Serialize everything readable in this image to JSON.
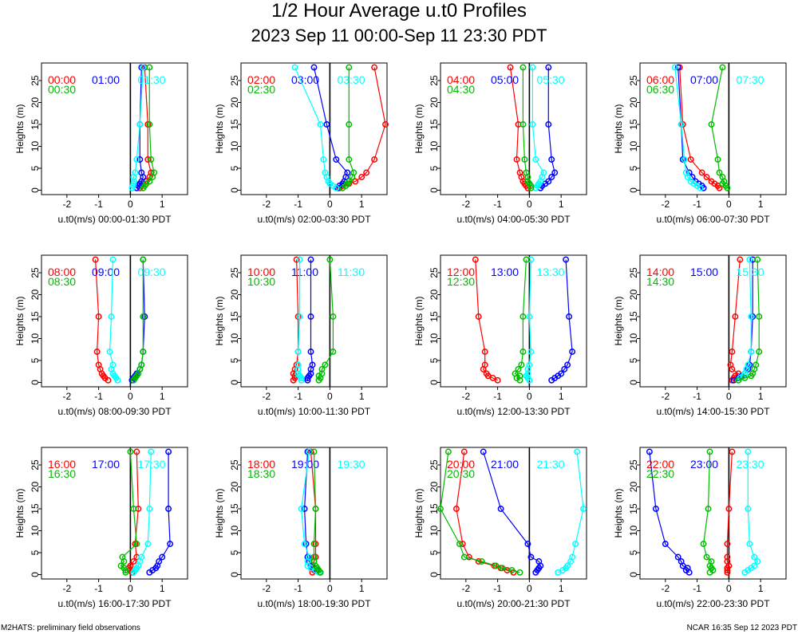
{
  "title": "1/2 Hour Average u.t0 Profiles",
  "subtitle": "2023 Sep 11 00:00-Sep 11 23:30 PDT",
  "footer_left": "M2HATS: preliminary field observations",
  "footer_right": "NCAR 16:35 Sep 12 2023 PDT",
  "colors": {
    "red": "#ff0000",
    "blue": "#0000ff",
    "cyan": "#00ffff",
    "green": "#00bb00"
  },
  "chart_data": {
    "type": "line",
    "ylabel": "Heights (m)",
    "xlim": [
      -2.8,
      1.8
    ],
    "ylim": [
      -1,
      29
    ],
    "xticks": [
      -2,
      -1,
      0,
      1
    ],
    "yticks": [
      0,
      5,
      10,
      15,
      20,
      25
    ],
    "heights": [
      0.5,
      1,
      1.5,
      2,
      3,
      4,
      7,
      15,
      28
    ],
    "panels": [
      {
        "xlabel": "u.t0(m/s) 00:00-01:30 PDT",
        "series": [
          {
            "name": "00:00",
            "color": "red",
            "values": [
              0.3,
              0.35,
              0.4,
              0.5,
              0.6,
              0.65,
              0.55,
              0.55,
              0.45
            ]
          },
          {
            "name": "01:00",
            "color": "blue",
            "values": [
              0.2,
              0.25,
              0.3,
              0.35,
              0.4,
              0.35,
              0.3,
              0.3,
              0.35
            ]
          },
          {
            "name": "01:30",
            "color": "cyan",
            "values": [
              0.05,
              0.08,
              0.1,
              0.12,
              0.1,
              0.15,
              0.2,
              0.3,
              0.4
            ]
          },
          {
            "name": "00:30",
            "color": "green",
            "values": [
              0.4,
              0.45,
              0.5,
              0.6,
              0.7,
              0.75,
              0.65,
              0.6,
              0.6
            ]
          }
        ]
      },
      {
        "xlabel": "u.t0(m/s) 02:00-03:30 PDT",
        "series": [
          {
            "name": "02:00",
            "color": "red",
            "values": [
              0.3,
              0.4,
              0.6,
              0.8,
              1.0,
              1.15,
              1.4,
              1.75,
              1.4
            ]
          },
          {
            "name": "03:00",
            "color": "blue",
            "values": [
              0.25,
              0.3,
              0.4,
              0.45,
              0.5,
              0.55,
              0.2,
              -0.1,
              -0.5
            ]
          },
          {
            "name": "03:30",
            "color": "cyan",
            "values": [
              0.2,
              0.1,
              0.0,
              -0.05,
              -0.1,
              -0.15,
              -0.2,
              -0.3,
              -1.1
            ]
          },
          {
            "name": "02:30",
            "color": "green",
            "values": [
              0.4,
              0.5,
              0.55,
              0.6,
              0.7,
              0.75,
              0.6,
              0.6,
              0.6
            ]
          }
        ]
      },
      {
        "xlabel": "u.t0(m/s) 04:00-05:30 PDT",
        "series": [
          {
            "name": "04:00",
            "color": "red",
            "values": [
              -0.05,
              -0.1,
              -0.15,
              -0.2,
              -0.25,
              -0.3,
              -0.4,
              -0.35,
              -0.6
            ]
          },
          {
            "name": "05:00",
            "color": "blue",
            "values": [
              0.35,
              0.4,
              0.5,
              0.6,
              0.7,
              0.8,
              0.7,
              0.6,
              0.6
            ]
          },
          {
            "name": "05:30",
            "color": "cyan",
            "values": [
              0.2,
              0.25,
              0.3,
              0.35,
              0.4,
              0.45,
              0.2,
              0.1,
              0.1
            ]
          },
          {
            "name": "04:30",
            "color": "green",
            "values": [
              0.05,
              0.05,
              0.0,
              -0.05,
              -0.05,
              -0.1,
              -0.15,
              -0.2,
              -0.2
            ]
          }
        ]
      },
      {
        "xlabel": "u.t0(m/s) 06:00-07:30 PDT",
        "series": [
          {
            "name": "06:00",
            "color": "red",
            "values": [
              -0.3,
              -0.35,
              -0.45,
              -0.55,
              -0.7,
              -0.85,
              -1.2,
              -1.45,
              -1.55
            ]
          },
          {
            "name": "07:00",
            "color": "blue",
            "values": [
              -0.8,
              -0.85,
              -0.95,
              -1.05,
              -1.15,
              -1.25,
              -1.45,
              -1.5,
              -1.6
            ]
          },
          {
            "name": "07:30",
            "color": "cyan",
            "values": [
              -0.9,
              -1.0,
              -1.1,
              -1.2,
              -1.3,
              -1.35,
              -1.4,
              -1.5,
              -1.7
            ]
          },
          {
            "name": "06:30",
            "color": "green",
            "values": [
              -0.05,
              -0.1,
              -0.2,
              -0.15,
              -0.2,
              -0.3,
              -0.35,
              -0.55,
              -0.2
            ]
          }
        ]
      },
      {
        "xlabel": "u.t0(m/s) 08:00-09:30 PDT",
        "series": [
          {
            "name": "08:00",
            "color": "red",
            "values": [
              -0.7,
              -0.8,
              -0.85,
              -0.9,
              -0.95,
              -1.0,
              -1.05,
              -1.0,
              -1.1
            ]
          },
          {
            "name": "09:00",
            "color": "blue",
            "values": [
              0.05,
              0.1,
              0.15,
              0.2,
              0.3,
              0.35,
              0.4,
              0.45,
              0.4
            ]
          },
          {
            "name": "09:30",
            "color": "cyan",
            "values": [
              -0.4,
              -0.45,
              -0.5,
              -0.55,
              -0.6,
              -0.55,
              -0.65,
              -0.6,
              -0.55
            ]
          },
          {
            "name": "08:30",
            "color": "green",
            "values": [
              0.1,
              0.15,
              0.2,
              0.25,
              0.3,
              0.35,
              0.4,
              0.4,
              0.4
            ]
          }
        ]
      },
      {
        "xlabel": "u.t0(m/s) 10:00-11:30 PDT",
        "series": [
          {
            "name": "10:00",
            "color": "red",
            "values": [
              -1.15,
              -1.1,
              -1.1,
              -1.15,
              -1.1,
              -1.05,
              -1.0,
              -1.0,
              -1.05
            ]
          },
          {
            "name": "11:00",
            "color": "blue",
            "values": [
              -0.7,
              -0.7,
              -0.65,
              -0.6,
              -0.6,
              -0.55,
              -0.6,
              -0.6,
              -0.6
            ]
          },
          {
            "name": "11:30",
            "color": "cyan",
            "values": [
              -0.9,
              -0.9,
              -0.95,
              -1.0,
              -1.0,
              -1.0,
              -1.0,
              -0.95,
              -0.95
            ]
          },
          {
            "name": "10:30",
            "color": "green",
            "values": [
              -0.35,
              -0.3,
              -0.35,
              -0.25,
              -0.25,
              -0.15,
              0.1,
              0.1,
              0.0
            ]
          }
        ]
      },
      {
        "xlabel": "u.t0(m/s) 12:00-13:30 PDT",
        "series": [
          {
            "name": "12:00",
            "color": "red",
            "values": [
              -1.0,
              -1.15,
              -1.3,
              -1.35,
              -1.45,
              -1.4,
              -1.4,
              -1.6,
              -1.7
            ]
          },
          {
            "name": "13:00",
            "color": "blue",
            "values": [
              0.7,
              0.8,
              0.9,
              1.0,
              1.1,
              1.2,
              1.35,
              1.25,
              1.15
            ]
          },
          {
            "name": "13:30",
            "color": "cyan",
            "values": [
              0.0,
              -0.05,
              -0.1,
              -0.05,
              -0.05,
              0.0,
              0.05,
              0.0,
              0.05
            ]
          },
          {
            "name": "12:30",
            "color": "green",
            "values": [
              -0.3,
              -0.4,
              -0.3,
              -0.45,
              -0.35,
              -0.25,
              -0.2,
              -0.2,
              -0.1
            ]
          }
        ]
      },
      {
        "xlabel": "u.t0(m/s) 14:00-15:30 PDT",
        "series": [
          {
            "name": "14:00",
            "color": "red",
            "values": [
              0.1,
              0.15,
              0.2,
              0.3,
              0.1,
              0.05,
              0.1,
              0.2,
              0.35
            ]
          },
          {
            "name": "15:00",
            "color": "blue",
            "values": [
              0.15,
              0.3,
              0.4,
              0.5,
              0.6,
              0.65,
              0.7,
              0.75,
              0.75
            ]
          },
          {
            "name": "15:30",
            "color": "cyan",
            "values": [
              0.3,
              0.35,
              0.45,
              0.5,
              0.55,
              0.6,
              0.7,
              0.7,
              0.65
            ]
          },
          {
            "name": "14:30",
            "color": "green",
            "values": [
              0.3,
              0.5,
              0.7,
              0.75,
              0.8,
              0.85,
              0.95,
              0.95,
              0.9
            ]
          }
        ]
      },
      {
        "xlabel": "u.t0(m/s) 16:00-17:30 PDT",
        "series": [
          {
            "name": "16:00",
            "color": "red",
            "values": [
              0.05,
              0.0,
              -0.05,
              0.0,
              0.1,
              0.2,
              0.15,
              0.25,
              0.2
            ]
          },
          {
            "name": "17:00",
            "color": "blue",
            "values": [
              0.6,
              0.7,
              0.8,
              0.85,
              0.9,
              1.0,
              1.25,
              1.2,
              1.2
            ]
          },
          {
            "name": "17:30",
            "color": "cyan",
            "values": [
              0.1,
              0.15,
              0.2,
              0.25,
              0.3,
              0.35,
              0.55,
              0.6,
              0.65
            ]
          },
          {
            "name": "16:30",
            "color": "green",
            "values": [
              -0.15,
              -0.15,
              -0.2,
              -0.3,
              -0.2,
              -0.25,
              0.2,
              0.1,
              0.0
            ]
          }
        ]
      },
      {
        "xlabel": "u.t0(m/s) 18:00-19:30 PDT",
        "series": [
          {
            "name": "18:00",
            "color": "red",
            "values": [
              -0.55,
              -0.5,
              -0.55,
              -0.6,
              -0.5,
              -0.45,
              -0.45,
              -0.45,
              -0.6
            ]
          },
          {
            "name": "19:00",
            "color": "blue",
            "values": [
              -0.3,
              -0.4,
              -0.5,
              -0.6,
              -0.65,
              -0.7,
              -0.75,
              -0.8,
              -0.7
            ]
          },
          {
            "name": "19:30",
            "color": "cyan",
            "values": [
              -0.35,
              -0.45,
              -0.6,
              -0.7,
              -0.7,
              -0.65,
              -0.8,
              -0.9,
              -0.65
            ]
          },
          {
            "name": "18:30",
            "color": "green",
            "values": [
              -0.3,
              -0.35,
              -0.4,
              -0.45,
              -0.5,
              -0.5,
              -0.5,
              -0.45,
              -0.5
            ]
          }
        ]
      },
      {
        "xlabel": "u.t0(m/s) 20:00-21:30 PDT",
        "series": [
          {
            "name": "20:00",
            "color": "red",
            "values": [
              -0.5,
              -0.7,
              -0.9,
              -1.1,
              -1.6,
              -1.9,
              -2.1,
              -2.3,
              -2.05
            ]
          },
          {
            "name": "21:00",
            "color": "blue",
            "values": [
              0.2,
              0.25,
              0.3,
              0.35,
              0.3,
              0.05,
              -0.05,
              -0.9,
              -1.45
            ]
          },
          {
            "name": "21:30",
            "color": "cyan",
            "values": [
              0.9,
              1.05,
              1.15,
              1.2,
              1.3,
              1.35,
              1.45,
              1.7,
              1.5
            ]
          },
          {
            "name": "20:30",
            "color": "green",
            "values": [
              -0.3,
              -0.55,
              -0.85,
              -1.05,
              -1.5,
              -2.05,
              -2.2,
              -2.8,
              -2.55
            ]
          }
        ]
      },
      {
        "xlabel": "u.t0(m/s) 22:00-23:30 PDT",
        "series": [
          {
            "name": "22:00",
            "color": "red",
            "values": [
              -0.05,
              -0.05,
              -0.05,
              0.0,
              -0.05,
              -0.05,
              -0.05,
              0.0,
              0.1
            ]
          },
          {
            "name": "23:00",
            "color": "blue",
            "values": [
              -1.25,
              -1.35,
              -1.3,
              -1.45,
              -1.5,
              -1.6,
              -2.0,
              -2.3,
              -2.5
            ]
          },
          {
            "name": "23:30",
            "color": "cyan",
            "values": [
              0.5,
              0.6,
              0.7,
              0.8,
              0.9,
              0.8,
              0.65,
              0.6,
              0.6
            ]
          },
          {
            "name": "22:30",
            "color": "green",
            "values": [
              -0.6,
              -0.5,
              -0.55,
              -0.6,
              -0.55,
              -0.7,
              -0.8,
              -0.65,
              -0.6
            ]
          }
        ]
      }
    ]
  }
}
